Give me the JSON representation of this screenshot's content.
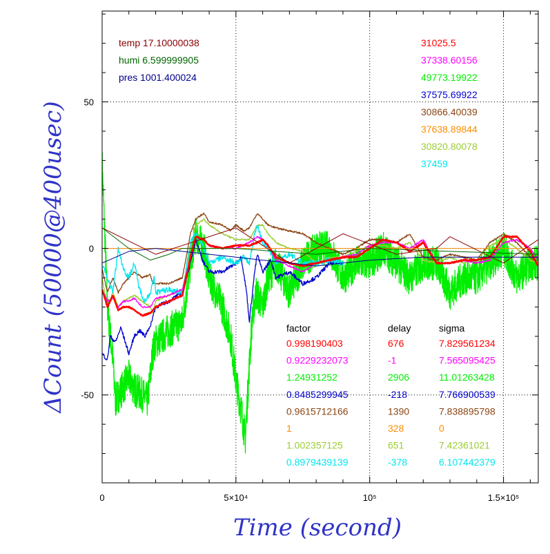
{
  "chart_data": {
    "type": "line",
    "xlabel": "Time (second)",
    "ylabel": "ΔCount (50000@400usec)",
    "xlim": [
      0,
      163000
    ],
    "ylim": [
      -80,
      81
    ],
    "x_ticks": [
      {
        "value": 0,
        "label": "0"
      },
      {
        "value": 50000,
        "label": "5×10⁴"
      },
      {
        "value": 100000,
        "label": "10⁵"
      },
      {
        "value": 150000,
        "label": "1.5×10⁵"
      }
    ],
    "y_ticks": [
      {
        "value": -50,
        "label": "-50"
      },
      {
        "value": 0,
        "label": "0"
      },
      {
        "value": 50,
        "label": "50"
      }
    ],
    "grid": "dotted",
    "env_labels": [
      {
        "name": "temp",
        "value": "17.10000038",
        "color": "#8b0000"
      },
      {
        "name": "humi",
        "value": "6.599999905",
        "color": "#006400"
      },
      {
        "name": "pres",
        "value": "1001.400024",
        "color": "#00008b"
      }
    ],
    "channel_ids": [
      {
        "text": "31025.5",
        "color": "#ff0000"
      },
      {
        "text": "37338.60156",
        "color": "#ff00ff"
      },
      {
        "text": "49773.19922",
        "color": "#00ee00"
      },
      {
        "text": "37575.69922",
        "color": "#0000cc"
      },
      {
        "text": "30866.40039",
        "color": "#8b4513"
      },
      {
        "text": "37638.89844",
        "color": "#ff8c00"
      },
      {
        "text": "30820.80078",
        "color": "#9acd32"
      },
      {
        "text": "37459",
        "color": "#00e5ee"
      }
    ],
    "stats_header": {
      "factor": "factor",
      "delay": "delay",
      "sigma": "sigma"
    },
    "stats": [
      {
        "factor": "0.998190403",
        "delay": "676",
        "sigma": "7.829561234",
        "color": "#ff0000"
      },
      {
        "factor": "0.9229232073",
        "delay": "-1",
        "sigma": "7.565095425",
        "color": "#ff00ff"
      },
      {
        "factor": "1.24931252",
        "delay": "2906",
        "sigma": "11.01263428",
        "color": "#00ee00"
      },
      {
        "factor": "0.8485299945",
        "delay": "-218",
        "sigma": "7.766900539",
        "color": "#0000cc"
      },
      {
        "factor": "0.9615712166",
        "delay": "1390",
        "sigma": "7.838895798",
        "color": "#8b4513"
      },
      {
        "factor": "1",
        "delay": "328",
        "sigma": "0",
        "color": "#ff8c00"
      },
      {
        "factor": "1.002357125",
        "delay": "651",
        "sigma": "7.42361021",
        "color": "#9acd32"
      },
      {
        "factor": "0.8979439139",
        "delay": "-378",
        "sigma": "6.107442379",
        "color": "#00e5ee"
      }
    ],
    "series": [
      {
        "color": "#00ee00",
        "noise": 6,
        "x": [
          0,
          2000,
          4000,
          5000,
          8000,
          10000,
          12000,
          15000,
          17000,
          19000,
          20000,
          25000,
          30000,
          33000,
          35000,
          38000,
          40000,
          45000,
          48000,
          50000,
          52000,
          53500,
          55000,
          56000,
          57500,
          60000,
          62000,
          65000,
          70000,
          75000,
          80000,
          85000,
          90000,
          95000,
          100000,
          105000,
          110000,
          115000,
          120000,
          125000,
          130000,
          135000,
          140000,
          145000,
          150000,
          155000,
          160000,
          163000
        ],
        "y": [
          29,
          -20,
          -38,
          -52,
          -47,
          -44,
          -48,
          -50,
          -52,
          -35,
          -32,
          -28,
          -25,
          -5,
          5,
          0,
          -10,
          -20,
          -30,
          -45,
          -55,
          -65,
          -40,
          -25,
          -15,
          -20,
          -10,
          -5,
          -15,
          -5,
          0,
          0,
          -10,
          -5,
          -5,
          0,
          -5,
          -10,
          -5,
          -5,
          -15,
          -10,
          -10,
          -5,
          0,
          -10,
          -5,
          -5
        ]
      },
      {
        "color": "#0000cc",
        "noise": 0.7,
        "x": [
          0,
          2000,
          3000,
          5000,
          7000,
          9000,
          10000,
          12000,
          14000,
          16000,
          17500,
          18000,
          19000,
          20000,
          25000,
          30000,
          33000,
          35000,
          38000,
          40000,
          45000,
          50000,
          52000,
          54000,
          55000,
          57000,
          58000,
          60000,
          63000,
          65000,
          70000,
          75000,
          80000,
          85000,
          90000
        ],
        "y": [
          -36,
          -38,
          -30,
          -32,
          -27,
          -33,
          -36,
          -30,
          -28,
          -30,
          -27,
          -27,
          -23,
          -20,
          -18,
          -15,
          -5,
          3,
          -5,
          -8,
          -8,
          -5,
          -3,
          -15,
          -25,
          -8,
          -2,
          -8,
          -4,
          -10,
          -8,
          -12,
          -10,
          -5,
          -5
        ]
      },
      {
        "color": "#8b4513",
        "noise": 0.3,
        "x": [
          0,
          2000,
          4000,
          6000,
          8000,
          10000,
          12000,
          15000,
          18000,
          19000,
          20000,
          25000,
          30000,
          33000,
          35000,
          38000,
          40000,
          45000,
          48000,
          50000,
          53000,
          55000,
          58000,
          60000,
          62000,
          65000,
          70000,
          75000,
          80000,
          85000,
          90000,
          95000,
          100000,
          105000,
          110000,
          115000,
          120000,
          125000,
          130000,
          135000,
          140000,
          145000,
          150000,
          155000,
          160000,
          163000
        ],
        "y": [
          -7,
          -15,
          -10,
          -15,
          -12,
          -10,
          -8,
          -10,
          -9,
          -12,
          -12,
          -12,
          -10,
          5,
          10,
          12,
          9,
          8,
          6,
          8,
          6,
          7,
          12,
          10,
          8,
          7,
          6,
          5,
          2,
          0,
          -2,
          0,
          3,
          3,
          2,
          5,
          -3,
          -4,
          -2,
          -3,
          -4,
          2,
          5,
          2,
          -3,
          -5
        ]
      },
      {
        "color": "#9acd32",
        "noise": 0.3,
        "x": [
          0,
          2000,
          4000,
          6000,
          8000,
          10000,
          12000,
          15000,
          18000,
          19000,
          20000,
          25000,
          30000,
          33000,
          35000,
          38000,
          40000,
          45000,
          50000,
          55000,
          58000,
          60000,
          62000,
          65000,
          70000,
          75000,
          80000,
          85000,
          90000,
          95000,
          100000,
          105000,
          110000,
          115000,
          120000,
          125000,
          130000,
          135000,
          140000,
          145000,
          150000,
          155000,
          160000,
          163000
        ],
        "y": [
          -10,
          -20,
          -15,
          -20,
          -18,
          -17,
          -16,
          -18,
          -20,
          -22,
          -18,
          -16,
          -14,
          0,
          8,
          10,
          8,
          5,
          3,
          3,
          8,
          8,
          5,
          2,
          0,
          -1,
          -5,
          -3,
          -3,
          -1,
          1,
          1,
          0,
          2,
          -4,
          -5,
          -3,
          -5,
          -4,
          1,
          3,
          0,
          -4,
          -5
        ]
      },
      {
        "color": "#00e5ee",
        "noise": 1.0,
        "x": [
          0,
          2000,
          4000,
          6000,
          8000,
          10000,
          12000,
          14000,
          16000,
          18000,
          19500,
          20000,
          25000,
          30000,
          33000,
          35000,
          38000,
          40000,
          45000,
          50000,
          53000,
          55000,
          57000,
          58000,
          60000,
          62000,
          65000,
          70000,
          75000,
          80000,
          85000,
          90000
        ],
        "y": [
          -5,
          -10,
          -15,
          0,
          -7,
          -10,
          -5,
          -14,
          -18,
          -15,
          -10,
          -15,
          -14,
          -15,
          2,
          5,
          0,
          -5,
          -3,
          -5,
          -3,
          -5,
          5,
          8,
          2,
          0,
          -5,
          -2,
          -5,
          -5,
          -4,
          -5
        ]
      },
      {
        "color": "#ff00ff",
        "noise": 0.3,
        "x": [
          0,
          2000,
          4000,
          6000,
          8000,
          10000,
          12000,
          15000,
          18000,
          20000,
          25000,
          30000,
          33000,
          35000,
          38000,
          40000,
          45000,
          50000,
          55000,
          58000,
          60000,
          62000,
          65000,
          70000,
          75000,
          80000,
          85000,
          90000,
          95000,
          100000,
          105000,
          110000,
          115000,
          120000,
          125000,
          130000,
          135000,
          140000,
          145000,
          150000,
          155000,
          160000,
          163000
        ],
        "y": [
          -14,
          -18,
          -17,
          -20,
          -18,
          -18,
          -17,
          -20,
          -20,
          -17,
          -16,
          -14,
          -3,
          4,
          3,
          1,
          0,
          0,
          2,
          4,
          3,
          1,
          -4,
          -6,
          -8,
          -5,
          -4,
          -3,
          -2,
          1,
          2,
          2,
          0,
          3,
          -5,
          -5,
          -4,
          -5,
          -4,
          2,
          3,
          0,
          -4
        ]
      },
      {
        "color": "#ff0000",
        "noise": 0.2,
        "width": 2.5,
        "x": [
          0,
          2000,
          4000,
          6000,
          8000,
          10000,
          12000,
          15000,
          18000,
          20000,
          25000,
          30000,
          33000,
          35000,
          38000,
          40000,
          45000,
          50000,
          55000,
          58000,
          60000,
          62000,
          65000,
          70000,
          75000,
          80000,
          85000,
          90000,
          95000,
          100000,
          105000,
          110000,
          115000,
          120000,
          125000,
          130000,
          135000,
          140000,
          145000,
          150000,
          155000,
          160000,
          163000
        ],
        "y": [
          -14,
          -20,
          -16,
          -21,
          -20,
          -20,
          -21,
          -23,
          -22,
          -20,
          -18,
          -16,
          -3,
          4,
          3,
          1,
          0,
          1,
          1,
          2,
          3,
          1,
          -3,
          -5,
          -6,
          -5,
          -4,
          -3,
          -3,
          0,
          3,
          2,
          -1,
          2,
          -5,
          -5,
          -4,
          -4,
          -3,
          4,
          4,
          -1,
          -6
        ]
      },
      {
        "color": "#ff8c00",
        "noise": 0,
        "width": 1,
        "x": [
          0,
          163000
        ],
        "y": [
          0,
          0
        ]
      },
      {
        "color": "#8b0000",
        "noise": 0,
        "width": 1,
        "x": [
          0,
          20000,
          50000,
          70000,
          90000,
          110000,
          125000,
          130000,
          150000,
          163000
        ],
        "y": [
          7,
          -2,
          7,
          -5,
          5,
          -2,
          0,
          4,
          -5,
          3
        ]
      },
      {
        "color": "#006400",
        "noise": 0,
        "width": 1,
        "x": [
          0,
          10000,
          18000,
          25000,
          30000,
          50000,
          80000,
          100000,
          130000,
          163000
        ],
        "y": [
          7,
          0,
          -4,
          -2,
          0,
          0,
          -2,
          0,
          -1,
          -2
        ]
      },
      {
        "color": "#00008b",
        "noise": 0,
        "width": 1,
        "x": [
          0,
          10000,
          20000,
          30000,
          40000,
          50000,
          60000,
          70000,
          80000,
          90000,
          100000,
          120000,
          140000,
          163000
        ],
        "y": [
          -5,
          -1,
          0,
          -1,
          -2,
          -3,
          -4,
          -5,
          -6,
          -5,
          -4,
          -3,
          -3,
          -3
        ]
      }
    ]
  }
}
